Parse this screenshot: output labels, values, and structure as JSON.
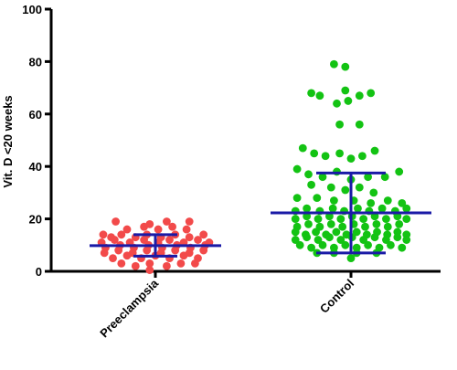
{
  "chart_data": {
    "type": "scatter",
    "ylabel": "Vit. D <20 weeks",
    "ylim": [
      0,
      100
    ],
    "yticks": [
      0,
      20,
      40,
      60,
      80,
      100
    ],
    "grid": false,
    "error_bar_color": "#1a1aa6",
    "categories": [
      "Preeclampsia",
      "Control"
    ],
    "groups": [
      {
        "category": "Preeclampsia",
        "color": "#f24a4a",
        "summary": {
          "center": 9.8,
          "upper": 14.0,
          "lower": 5.8
        },
        "points": [
          {
            "x": -0.92,
            "y": 14
          },
          {
            "x": -0.78,
            "y": 13
          },
          {
            "x": -0.6,
            "y": 14
          },
          {
            "x": -0.35,
            "y": 13
          },
          {
            "x": -0.15,
            "y": 14
          },
          {
            "x": 0.1,
            "y": 13
          },
          {
            "x": 0.35,
            "y": 14
          },
          {
            "x": 0.6,
            "y": 13
          },
          {
            "x": 0.85,
            "y": 14
          },
          {
            "x": -0.5,
            "y": 16
          },
          {
            "x": -0.2,
            "y": 17
          },
          {
            "x": 0.05,
            "y": 16
          },
          {
            "x": 0.3,
            "y": 17
          },
          {
            "x": 0.55,
            "y": 16
          },
          {
            "x": -0.7,
            "y": 19
          },
          {
            "x": -0.1,
            "y": 18
          },
          {
            "x": 0.2,
            "y": 19
          },
          {
            "x": 0.6,
            "y": 19
          },
          {
            "x": -0.95,
            "y": 11
          },
          {
            "x": -0.72,
            "y": 12
          },
          {
            "x": -0.45,
            "y": 11
          },
          {
            "x": -0.2,
            "y": 12
          },
          {
            "x": 0.05,
            "y": 11
          },
          {
            "x": 0.25,
            "y": 12
          },
          {
            "x": 0.5,
            "y": 11
          },
          {
            "x": 0.75,
            "y": 12
          },
          {
            "x": 0.95,
            "y": 11
          },
          {
            "x": -0.88,
            "y": 9
          },
          {
            "x": -0.62,
            "y": 10
          },
          {
            "x": -0.38,
            "y": 9
          },
          {
            "x": -0.12,
            "y": 10
          },
          {
            "x": 0.12,
            "y": 9
          },
          {
            "x": 0.38,
            "y": 10
          },
          {
            "x": 0.62,
            "y": 9
          },
          {
            "x": 0.88,
            "y": 10
          },
          {
            "x": -0.9,
            "y": 7
          },
          {
            "x": -0.65,
            "y": 8
          },
          {
            "x": -0.4,
            "y": 7
          },
          {
            "x": -0.15,
            "y": 8
          },
          {
            "x": 0.1,
            "y": 7
          },
          {
            "x": 0.35,
            "y": 8
          },
          {
            "x": 0.6,
            "y": 7
          },
          {
            "x": 0.85,
            "y": 8
          },
          {
            "x": -0.75,
            "y": 5
          },
          {
            "x": -0.5,
            "y": 6
          },
          {
            "x": -0.25,
            "y": 5
          },
          {
            "x": 0.0,
            "y": 6
          },
          {
            "x": 0.25,
            "y": 5
          },
          {
            "x": 0.5,
            "y": 6
          },
          {
            "x": 0.75,
            "y": 5
          },
          {
            "x": -0.6,
            "y": 3
          },
          {
            "x": -0.35,
            "y": 2
          },
          {
            "x": -0.1,
            "y": 3
          },
          {
            "x": 0.2,
            "y": 2
          },
          {
            "x": 0.45,
            "y": 3
          },
          {
            "x": 0.7,
            "y": 3
          },
          {
            "x": -0.1,
            "y": 0.5
          }
        ]
      },
      {
        "category": "Control",
        "color": "#13c313",
        "summary": {
          "center": 22.3,
          "upper": 37.5,
          "lower": 7.0
        },
        "points": [
          {
            "x": -0.3,
            "y": 79
          },
          {
            "x": -0.1,
            "y": 78
          },
          {
            "x": -0.7,
            "y": 68
          },
          {
            "x": -0.55,
            "y": 67
          },
          {
            "x": -0.1,
            "y": 69
          },
          {
            "x": 0.15,
            "y": 67
          },
          {
            "x": 0.35,
            "y": 68
          },
          {
            "x": -0.25,
            "y": 64
          },
          {
            "x": -0.05,
            "y": 65
          },
          {
            "x": -0.2,
            "y": 56
          },
          {
            "x": 0.15,
            "y": 56
          },
          {
            "x": -0.85,
            "y": 47
          },
          {
            "x": -0.65,
            "y": 45
          },
          {
            "x": -0.45,
            "y": 44
          },
          {
            "x": -0.2,
            "y": 45
          },
          {
            "x": 0.0,
            "y": 43
          },
          {
            "x": 0.2,
            "y": 44
          },
          {
            "x": 0.42,
            "y": 46
          },
          {
            "x": -0.95,
            "y": 39
          },
          {
            "x": -0.75,
            "y": 37
          },
          {
            "x": -0.5,
            "y": 36
          },
          {
            "x": -0.25,
            "y": 38
          },
          {
            "x": 0.0,
            "y": 35
          },
          {
            "x": 0.3,
            "y": 36
          },
          {
            "x": 0.6,
            "y": 36
          },
          {
            "x": 0.85,
            "y": 38
          },
          {
            "x": -0.7,
            "y": 33
          },
          {
            "x": -0.35,
            "y": 32
          },
          {
            "x": -0.1,
            "y": 31
          },
          {
            "x": 0.15,
            "y": 32
          },
          {
            "x": 0.4,
            "y": 30
          },
          {
            "x": -0.95,
            "y": 28
          },
          {
            "x": -0.6,
            "y": 28
          },
          {
            "x": -0.3,
            "y": 27
          },
          {
            "x": 0.05,
            "y": 27
          },
          {
            "x": 0.35,
            "y": 26
          },
          {
            "x": 0.65,
            "y": 27
          },
          {
            "x": 0.9,
            "y": 26
          },
          {
            "x": -0.98,
            "y": 23
          },
          {
            "x": -0.78,
            "y": 24
          },
          {
            "x": -0.55,
            "y": 23
          },
          {
            "x": -0.32,
            "y": 24
          },
          {
            "x": -0.12,
            "y": 23
          },
          {
            "x": 0.12,
            "y": 24
          },
          {
            "x": 0.32,
            "y": 23
          },
          {
            "x": 0.55,
            "y": 24
          },
          {
            "x": 0.78,
            "y": 23
          },
          {
            "x": 0.98,
            "y": 24
          },
          {
            "x": -0.98,
            "y": 20
          },
          {
            "x": -0.78,
            "y": 21
          },
          {
            "x": -0.58,
            "y": 20
          },
          {
            "x": -0.38,
            "y": 21
          },
          {
            "x": -0.18,
            "y": 20
          },
          {
            "x": 0.02,
            "y": 21
          },
          {
            "x": 0.22,
            "y": 20
          },
          {
            "x": 0.42,
            "y": 21
          },
          {
            "x": 0.62,
            "y": 20
          },
          {
            "x": 0.82,
            "y": 21
          },
          {
            "x": 0.98,
            "y": 20
          },
          {
            "x": -0.95,
            "y": 17
          },
          {
            "x": -0.75,
            "y": 18
          },
          {
            "x": -0.55,
            "y": 17
          },
          {
            "x": -0.35,
            "y": 18
          },
          {
            "x": -0.15,
            "y": 17
          },
          {
            "x": 0.05,
            "y": 18
          },
          {
            "x": 0.25,
            "y": 17
          },
          {
            "x": 0.45,
            "y": 18
          },
          {
            "x": 0.65,
            "y": 17
          },
          {
            "x": 0.85,
            "y": 18
          },
          {
            "x": -0.98,
            "y": 15
          },
          {
            "x": -0.8,
            "y": 14
          },
          {
            "x": -0.62,
            "y": 15
          },
          {
            "x": -0.44,
            "y": 14
          },
          {
            "x": -0.26,
            "y": 15
          },
          {
            "x": -0.08,
            "y": 14
          },
          {
            "x": 0.1,
            "y": 15
          },
          {
            "x": 0.28,
            "y": 14
          },
          {
            "x": 0.46,
            "y": 15
          },
          {
            "x": 0.64,
            "y": 14
          },
          {
            "x": 0.82,
            "y": 15
          },
          {
            "x": 0.98,
            "y": 14
          },
          {
            "x": -0.98,
            "y": 12
          },
          {
            "x": -0.78,
            "y": 13
          },
          {
            "x": -0.58,
            "y": 12
          },
          {
            "x": -0.38,
            "y": 13
          },
          {
            "x": -0.18,
            "y": 12
          },
          {
            "x": 0.02,
            "y": 13
          },
          {
            "x": 0.22,
            "y": 12
          },
          {
            "x": 0.42,
            "y": 13
          },
          {
            "x": 0.62,
            "y": 12
          },
          {
            "x": 0.82,
            "y": 13
          },
          {
            "x": 0.98,
            "y": 12
          },
          {
            "x": -0.9,
            "y": 10
          },
          {
            "x": -0.7,
            "y": 9
          },
          {
            "x": -0.5,
            "y": 10
          },
          {
            "x": -0.3,
            "y": 9
          },
          {
            "x": -0.1,
            "y": 10
          },
          {
            "x": 0.1,
            "y": 9
          },
          {
            "x": 0.3,
            "y": 10
          },
          {
            "x": 0.5,
            "y": 9
          },
          {
            "x": 0.7,
            "y": 10
          },
          {
            "x": 0.9,
            "y": 9
          },
          {
            "x": -0.6,
            "y": 7
          },
          {
            "x": -0.3,
            "y": 7
          },
          {
            "x": 0.1,
            "y": 7
          },
          {
            "x": 0.45,
            "y": 7
          },
          {
            "x": 0.0,
            "y": 5
          }
        ]
      }
    ]
  }
}
